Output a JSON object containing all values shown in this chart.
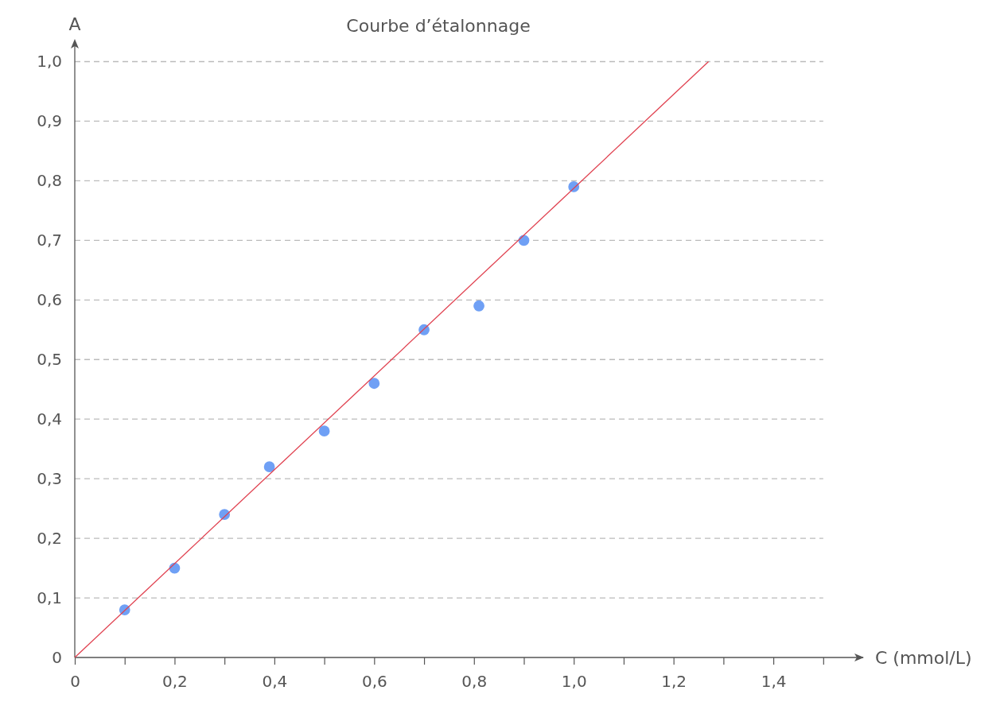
{
  "chart_data": {
    "type": "scatter",
    "title": "Courbe d’étalonnage",
    "xlabel": "C (mmol/L)",
    "ylabel": "A",
    "xlim": [
      0,
      1.58
    ],
    "ylim": [
      0,
      1.03
    ],
    "xticks": [
      0,
      {
        "value": 0.1,
        "label": null
      },
      {
        "value": 0.2,
        "label": "0,2"
      },
      {
        "value": 0.3,
        "label": null
      },
      {
        "value": 0.4,
        "label": "0,4"
      },
      {
        "value": 0.5,
        "label": null
      },
      {
        "value": 0.6,
        "label": "0,6"
      },
      {
        "value": 0.7,
        "label": null
      },
      {
        "value": 0.8,
        "label": "0,8"
      },
      {
        "value": 0.9,
        "label": null
      },
      {
        "value": 1.0,
        "label": "1,0"
      },
      {
        "value": 1.1,
        "label": null
      },
      {
        "value": 1.2,
        "label": "1,2"
      },
      {
        "value": 1.3,
        "label": null
      },
      {
        "value": 1.4,
        "label": "1,4"
      },
      {
        "value": 1.5,
        "label": null
      }
    ],
    "yticks": [
      0,
      {
        "value": 0.1,
        "label": "0,1"
      },
      {
        "value": 0.2,
        "label": "0,2"
      },
      {
        "value": 0.3,
        "label": "0,3"
      },
      {
        "value": 0.4,
        "label": "0,4"
      },
      {
        "value": 0.5,
        "label": "0,5"
      },
      {
        "value": 0.6,
        "label": "0,6"
      },
      {
        "value": 0.7,
        "label": "0,7"
      },
      {
        "value": 0.8,
        "label": "0,8"
      },
      {
        "value": 0.9,
        "label": "0,9"
      },
      {
        "value": 1.0,
        "label": "1,0"
      }
    ],
    "grid": "y",
    "series": [
      {
        "marker": "circle",
        "color": "#6fa0f5",
        "x": [
          0.1,
          0.2,
          0.3,
          0.39,
          0.5,
          0.6,
          0.7,
          0.81,
          0.9,
          1.0
        ],
        "values": [
          0.08,
          0.15,
          0.24,
          0.32,
          0.38,
          0.46,
          0.55,
          0.59,
          0.7,
          0.79
        ]
      },
      {
        "type": "line",
        "color": "#e0404f",
        "line_style": "solid",
        "x": [
          0,
          1.27
        ],
        "values": [
          0,
          1.0
        ]
      }
    ]
  }
}
